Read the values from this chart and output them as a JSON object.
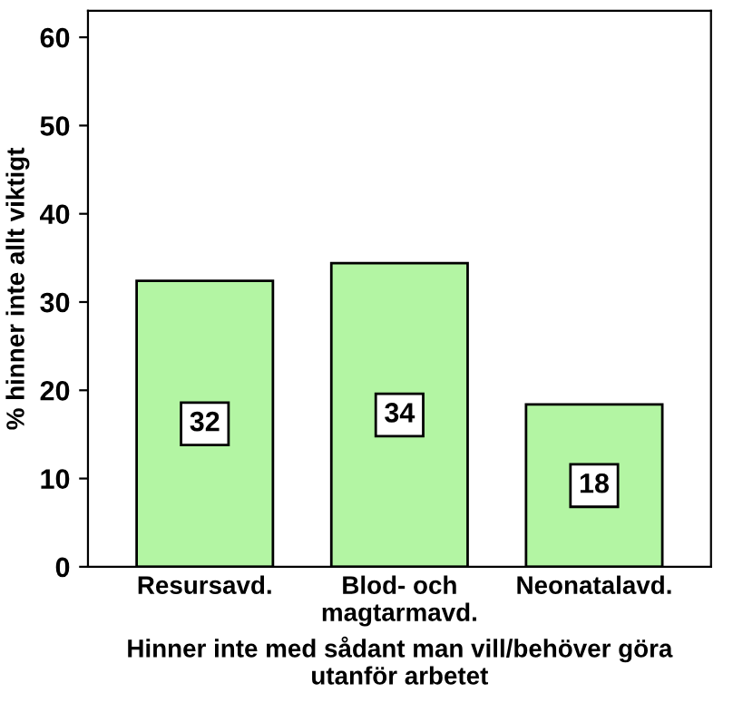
{
  "chart_data": {
    "type": "bar",
    "xlabel": "Hinner inte med sådant man vill/behöver göra\nutanför arbetet",
    "ylabel": "% hinner inte allt viktigt",
    "categories": [
      "Resursavd.",
      "Blod- och\nmagtarmavd.",
      "Neonatalavd."
    ],
    "values": [
      32.4,
      34.4,
      18.4
    ],
    "value_labels": [
      "32",
      "34",
      "18"
    ],
    "color": "#b3f5a3",
    "ylim": [
      0,
      63
    ],
    "yticks": [
      0,
      10,
      20,
      30,
      40,
      50,
      60
    ],
    "grid": false,
    "legend": false
  }
}
